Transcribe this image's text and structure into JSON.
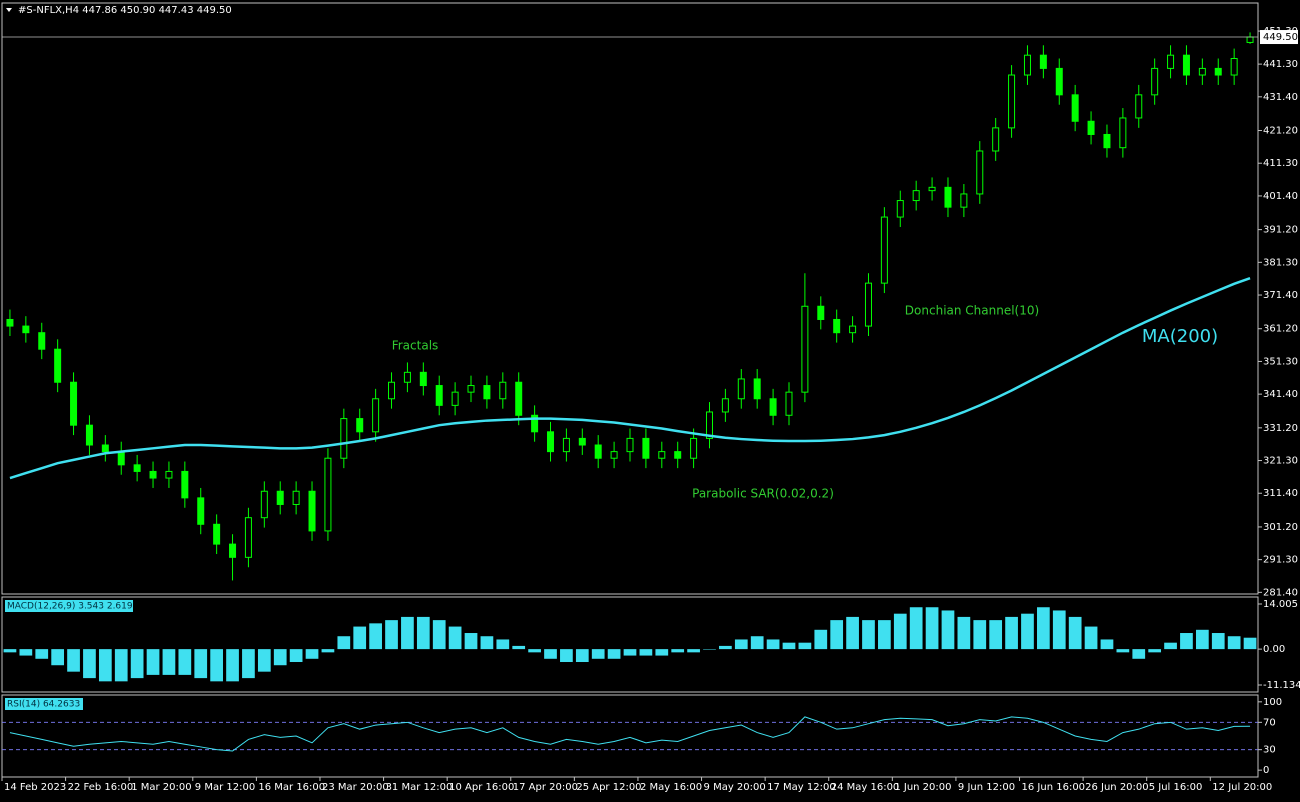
{
  "chart_data": [
    {
      "type": "candlestick",
      "title": "#S-NFLX,H4  447.86 450.90 447.43 449.50",
      "categories": [
        "14 Feb 2023",
        null,
        null,
        null,
        "22 Feb 16:00",
        null,
        null,
        null,
        "1 Mar 20:00",
        null,
        null,
        null,
        "9 Mar 12:00",
        null,
        null,
        null,
        "16 Mar 16:00",
        null,
        null,
        null,
        "23 Mar 20:00",
        null,
        null,
        null,
        "31 Mar 12:00",
        null,
        null,
        null,
        "10 Apr 16:00",
        null,
        null,
        null,
        "17 Apr 20:00",
        null,
        null,
        null,
        "25 Apr 12:00",
        null,
        null,
        null,
        "2 May 16:00",
        null,
        null,
        null,
        "9 May 20:00",
        null,
        null,
        null,
        "17 May 12:00",
        null,
        null,
        null,
        "24 May 16:00",
        null,
        null,
        null,
        "1 Jun 20:00",
        null,
        null,
        null,
        "9 Jun 12:00",
        null,
        null,
        null,
        "16 Jun 16:00",
        null,
        null,
        null,
        "26 Jun 20:00",
        null,
        null,
        null,
        "5 Jul 16:00",
        null,
        null,
        null,
        "12 Jul 20:00",
        null,
        null
      ],
      "open": [
        364,
        362,
        360,
        355,
        345,
        332,
        326,
        324,
        320,
        318,
        316,
        318,
        310,
        302,
        296,
        292,
        304,
        312,
        308,
        312,
        300,
        322,
        334,
        330,
        340,
        345,
        348,
        344,
        338,
        342,
        344,
        340,
        345,
        335,
        330,
        324,
        328,
        326,
        322,
        324,
        328,
        322,
        324,
        322,
        328,
        336,
        340,
        346,
        340,
        335,
        342,
        368,
        364,
        360,
        362,
        375,
        395,
        400,
        403,
        404,
        398,
        402,
        415,
        422,
        438,
        444,
        440,
        432,
        424,
        420,
        416,
        425,
        432,
        440,
        444,
        438,
        440,
        438,
        447.86
      ],
      "high": [
        367,
        365,
        363,
        358,
        348,
        335,
        329,
        327,
        323,
        321,
        321,
        321,
        313,
        305,
        299,
        307,
        315,
        315,
        315,
        315,
        325,
        337,
        337,
        343,
        348,
        351,
        351,
        347,
        345,
        347,
        347,
        348,
        348,
        338,
        333,
        331,
        331,
        329,
        327,
        331,
        331,
        327,
        327,
        331,
        339,
        343,
        349,
        349,
        343,
        345,
        378,
        371,
        367,
        365,
        378,
        398,
        403,
        406,
        407,
        407,
        405,
        418,
        425,
        441,
        447,
        447,
        443,
        435,
        427,
        423,
        428,
        435,
        443,
        447,
        447,
        443,
        443,
        446,
        450.9
      ],
      "low": [
        359,
        357,
        352,
        342,
        329,
        323,
        321,
        317,
        315,
        313,
        313,
        307,
        299,
        293,
        285,
        289,
        301,
        305,
        305,
        297,
        297,
        319,
        327,
        327,
        337,
        342,
        341,
        335,
        335,
        339,
        337,
        337,
        332,
        327,
        321,
        321,
        323,
        319,
        319,
        321,
        319,
        319,
        319,
        319,
        325,
        333,
        337,
        337,
        332,
        332,
        339,
        361,
        357,
        357,
        359,
        372,
        392,
        397,
        400,
        395,
        395,
        399,
        412,
        419,
        435,
        437,
        429,
        421,
        417,
        413,
        413,
        422,
        429,
        437,
        435,
        435,
        435,
        435,
        447.43
      ],
      "close": [
        362,
        360,
        355,
        345,
        332,
        326,
        324,
        320,
        318,
        316,
        318,
        310,
        302,
        296,
        292,
        304,
        312,
        308,
        312,
        300,
        322,
        334,
        330,
        340,
        345,
        348,
        344,
        338,
        342,
        344,
        340,
        345,
        335,
        330,
        324,
        328,
        326,
        322,
        324,
        328,
        322,
        324,
        322,
        328,
        336,
        340,
        346,
        340,
        335,
        342,
        368,
        364,
        360,
        362,
        375,
        395,
        400,
        403,
        404,
        398,
        402,
        415,
        422,
        438,
        444,
        440,
        432,
        424,
        420,
        416,
        425,
        432,
        440,
        444,
        438,
        440,
        438,
        443,
        449.5
      ],
      "color": "#00ff00",
      "series": [
        {
          "name": "MA(200)",
          "color": "#40e0f0",
          "values": [
            316,
            317.5,
            319,
            320.5,
            321.5,
            322.5,
            323.5,
            324,
            324.5,
            325,
            325.5,
            326,
            326,
            325.8,
            325.6,
            325.4,
            325.2,
            325,
            325,
            325.2,
            325.8,
            326.5,
            327.2,
            328,
            329,
            330,
            331,
            332,
            332.6,
            333,
            333.4,
            333.6,
            333.8,
            334,
            334,
            333.8,
            333.6,
            333.2,
            332.8,
            332.2,
            331.6,
            331,
            330.2,
            329.5,
            328.8,
            328.2,
            327.8,
            327.5,
            327.3,
            327.2,
            327.2,
            327.3,
            327.5,
            327.8,
            328.3,
            329,
            330,
            331.2,
            332.6,
            334.2,
            336,
            338,
            340.2,
            342.5,
            345,
            347.5,
            350,
            352.5,
            355,
            357.5,
            360,
            362.3,
            364.5,
            366.7,
            368.8,
            370.8,
            372.8,
            374.8,
            376.5
          ]
        }
      ],
      "annotations": [
        "Fractals",
        "Donchian Channel(10)",
        "Parabolic SAR(0.02,0.2)"
      ],
      "price_line": {
        "value": 449.5,
        "label": "449.50"
      },
      "ylim": [
        280.9,
        459.8
      ],
      "yticks": [
        {
          "value": 451.3,
          "label": "451.30"
        },
        {
          "value": 441.3,
          "label": "441.30"
        },
        {
          "value": 431.4,
          "label": "431.40"
        },
        {
          "value": 421.2,
          "label": "421.20"
        },
        {
          "value": 411.3,
          "label": "411.30"
        },
        {
          "value": 401.4,
          "label": "401.40"
        },
        {
          "value": 391.2,
          "label": "391.20"
        },
        {
          "value": 381.3,
          "label": "381.30"
        },
        {
          "value": 371.4,
          "label": "371.40"
        },
        {
          "value": 361.2,
          "label": "361.20"
        },
        {
          "value": 351.3,
          "label": "351.30"
        },
        {
          "value": 341.4,
          "label": "341.40"
        },
        {
          "value": 331.2,
          "label": "331.20"
        },
        {
          "value": 321.3,
          "label": "321.30"
        },
        {
          "value": 311.4,
          "label": "311.40"
        },
        {
          "value": 301.2,
          "label": "301.20"
        },
        {
          "value": 291.3,
          "label": "291.30"
        },
        {
          "value": 281.4,
          "label": "281.40"
        }
      ]
    },
    {
      "type": "bar",
      "title": "MACD(12,26,9) 3.543 2.619",
      "color": "#40e0f0",
      "values": [
        -1,
        -2,
        -3,
        -5,
        -7,
        -9,
        -10,
        -10,
        -9,
        -8,
        -8,
        -8,
        -9,
        -10,
        -10,
        -9,
        -7,
        -5,
        -4,
        -3,
        -1,
        4,
        7,
        8,
        9,
        10,
        10,
        9,
        7,
        5,
        4,
        3,
        1,
        -1,
        -3,
        -4,
        -4,
        -3,
        -3,
        -2,
        -2,
        -2,
        -1,
        -1,
        0,
        1,
        3,
        4,
        3,
        2,
        2,
        6,
        9,
        10,
        9,
        9,
        11,
        13,
        13,
        12,
        10,
        9,
        9,
        10,
        11,
        13,
        12,
        10,
        7,
        3,
        -1,
        -3,
        -1,
        2,
        5,
        6,
        5,
        4,
        3.543
      ],
      "ylim": [
        -13.31,
        16.18
      ],
      "yticks": [
        14.005,
        {
          "value": 0,
          "label": "0.00"
        },
        -11.134
      ]
    },
    {
      "type": "line",
      "title": "RSI(14) 64.2633",
      "color": "#40e0f0",
      "values": [
        55,
        50,
        45,
        40,
        35,
        38,
        40,
        42,
        40,
        38,
        42,
        38,
        34,
        30,
        28,
        45,
        52,
        48,
        50,
        40,
        62,
        68,
        60,
        66,
        68,
        70,
        62,
        55,
        60,
        62,
        55,
        62,
        48,
        42,
        38,
        45,
        42,
        38,
        42,
        48,
        40,
        44,
        42,
        50,
        58,
        62,
        66,
        55,
        48,
        55,
        78,
        70,
        60,
        62,
        68,
        74,
        76,
        75,
        74,
        65,
        68,
        74,
        72,
        78,
        76,
        70,
        60,
        50,
        45,
        42,
        55,
        60,
        68,
        70,
        60,
        62,
        58,
        64,
        64.2633
      ],
      "levels": [
        70,
        30
      ],
      "ylim": [
        -10,
        110
      ],
      "yticks": [
        100,
        70,
        30,
        0
      ]
    }
  ]
}
